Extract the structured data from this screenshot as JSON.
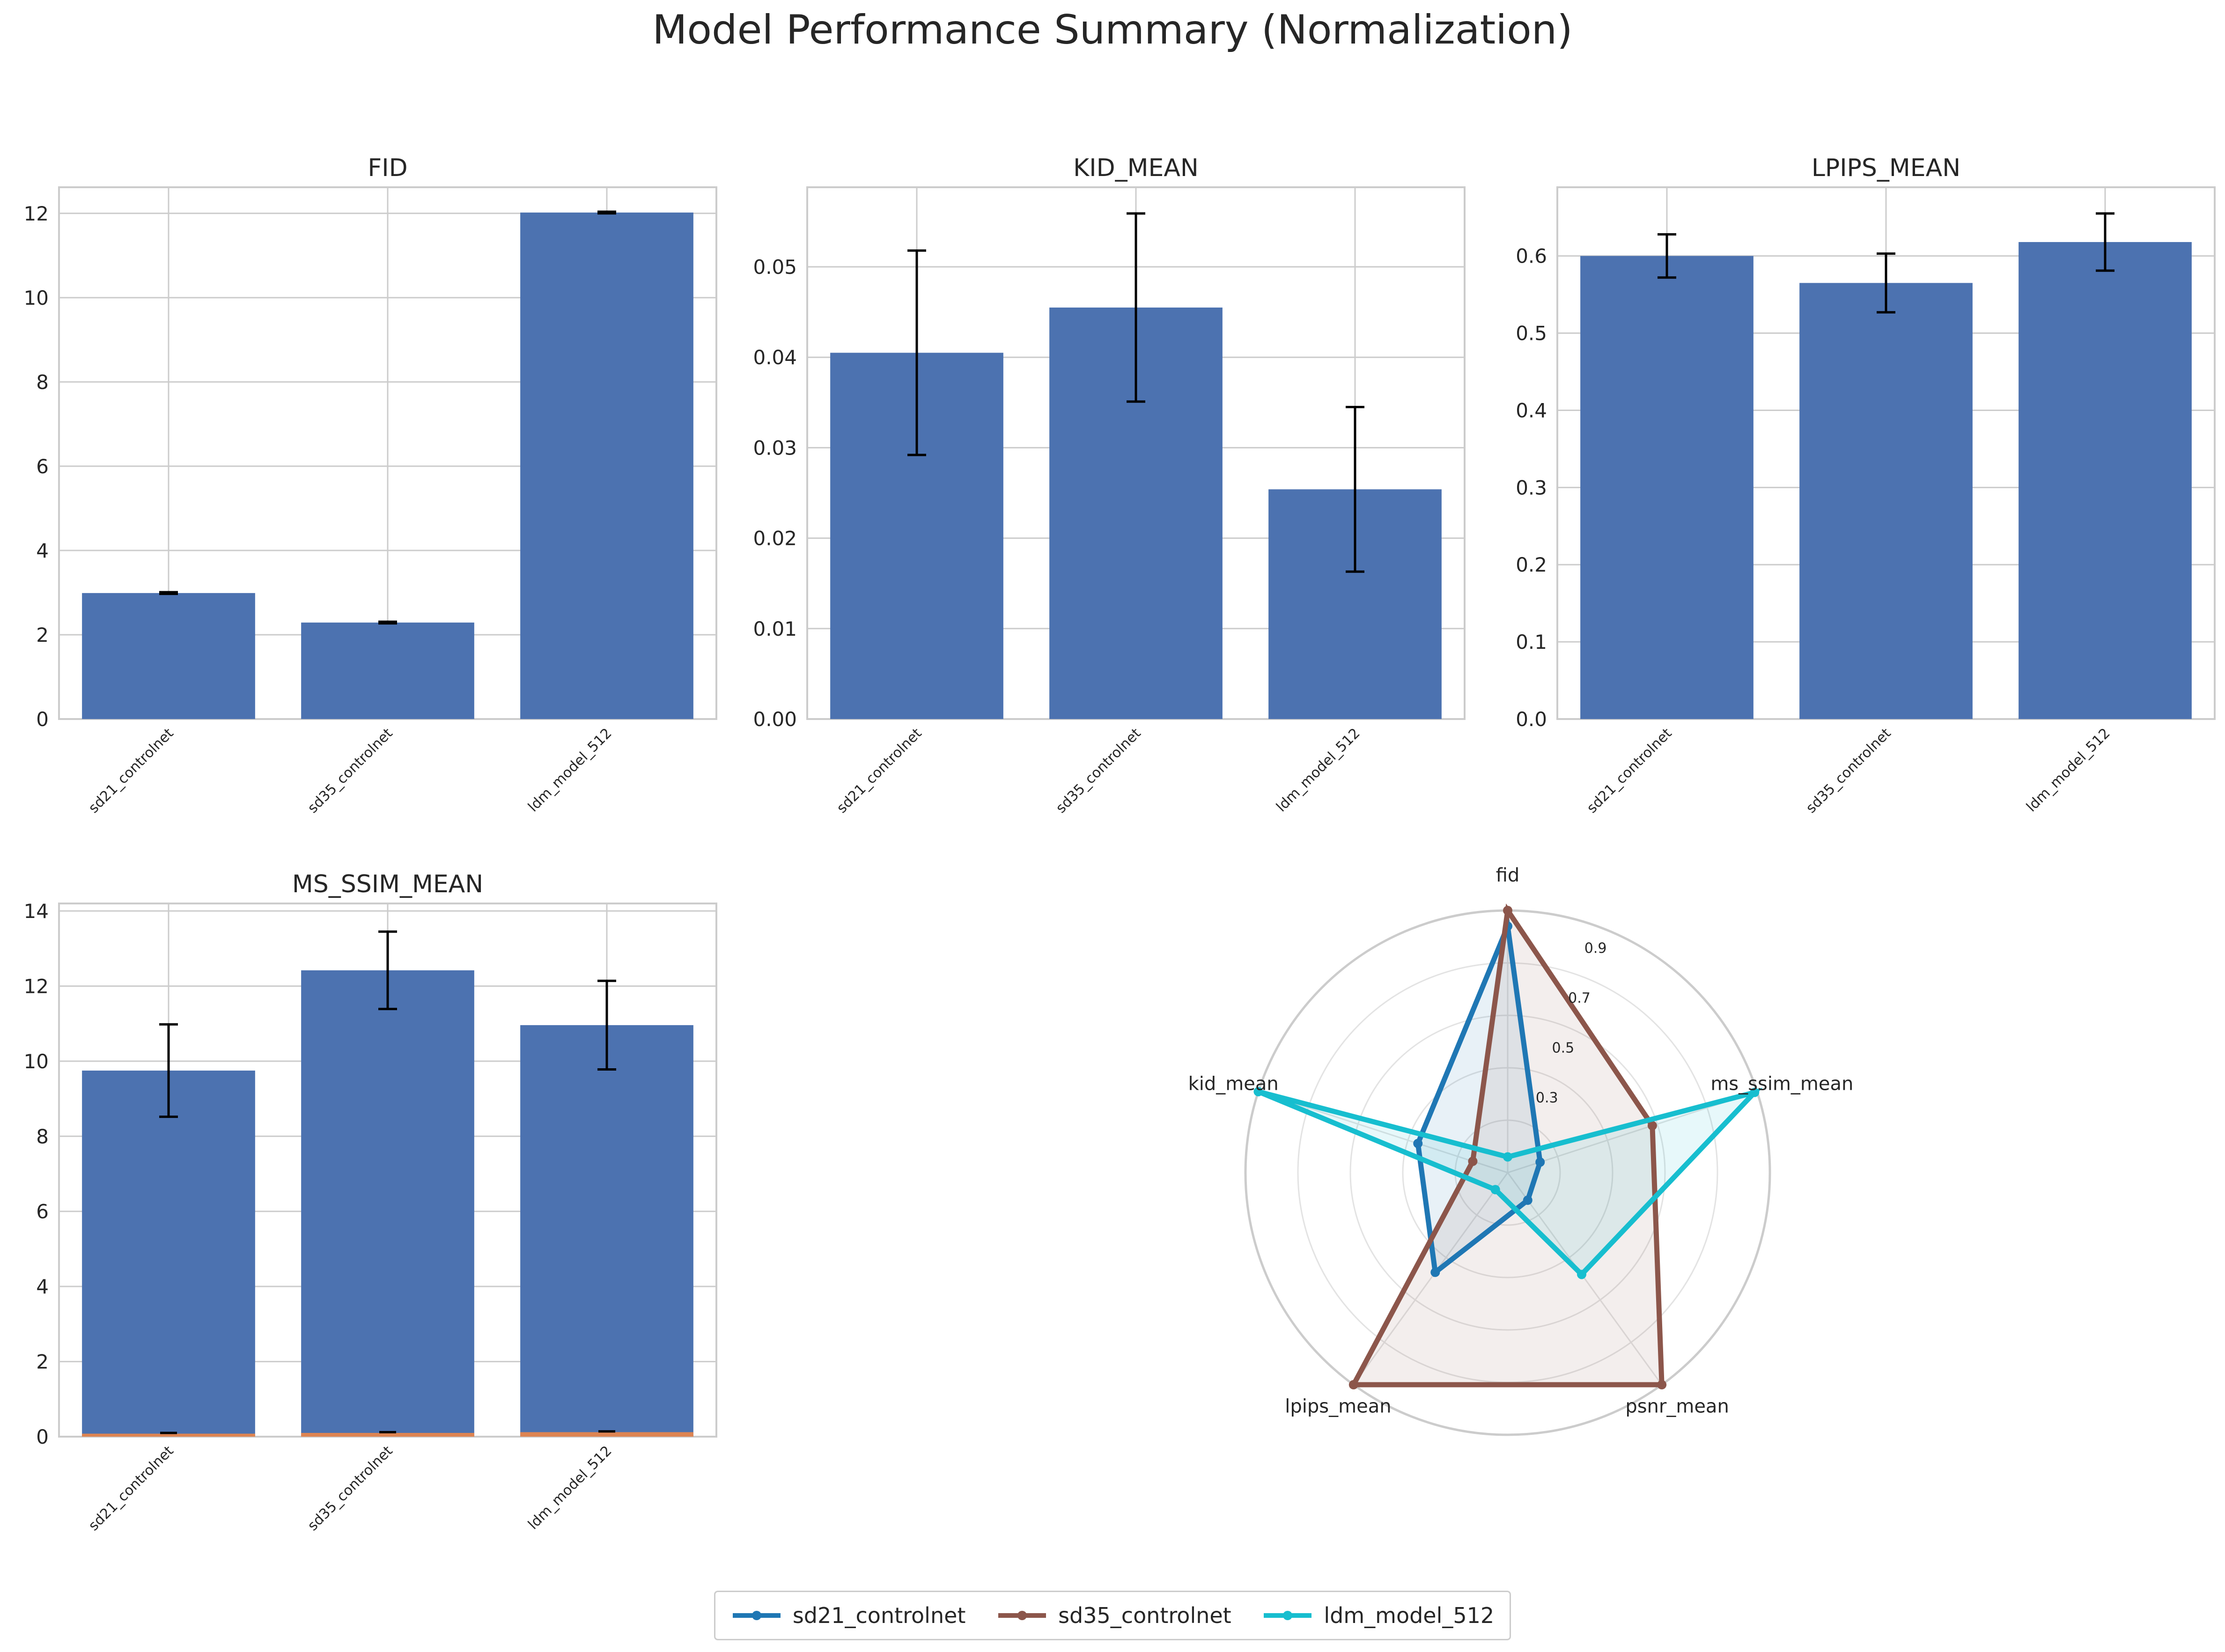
{
  "title": "Model Performance Summary (Normalization)",
  "colors": {
    "bar": "#4c72b0",
    "grid": "#cccccc",
    "error": "#000000",
    "overlay": "#dd8452",
    "sd21_controlnet": "#1f77b4",
    "sd35_controlnet": "#8c564b",
    "ldm_model_512": "#17becf"
  },
  "chart_data": [
    {
      "type": "bar",
      "title": "FID",
      "categories": [
        "sd21_controlnet",
        "sd35_controlnet",
        "ldm_model_512"
      ],
      "values": [
        2.99,
        2.29,
        12.02
      ],
      "errors": [
        0.02,
        0.02,
        0.02
      ],
      "ylim": [
        0,
        12.62
      ],
      "yticks": [
        "0",
        "2",
        "4",
        "6",
        "8",
        "10",
        "12"
      ],
      "ytick_values": [
        0,
        2,
        4,
        6,
        8,
        10,
        12
      ],
      "grid": true
    },
    {
      "type": "bar",
      "title": "KID_MEAN",
      "categories": [
        "sd21_controlnet",
        "sd35_controlnet",
        "ldm_model_512"
      ],
      "values": [
        0.0405,
        0.0455,
        0.0254
      ],
      "errors": [
        0.0113,
        0.0104,
        0.0091
      ],
      "ylim": [
        0,
        0.0588
      ],
      "yticks": [
        "0.00",
        "0.01",
        "0.02",
        "0.03",
        "0.04",
        "0.05"
      ],
      "ytick_values": [
        0,
        0.01,
        0.02,
        0.03,
        0.04,
        0.05
      ],
      "grid": true
    },
    {
      "type": "bar",
      "title": "LPIPS_MEAN",
      "categories": [
        "sd21_controlnet",
        "sd35_controlnet",
        "ldm_model_512"
      ],
      "values": [
        0.6,
        0.565,
        0.618
      ],
      "errors": [
        0.028,
        0.038,
        0.037
      ],
      "ylim": [
        0,
        0.689
      ],
      "yticks": [
        "0.0",
        "0.1",
        "0.2",
        "0.3",
        "0.4",
        "0.5",
        "0.6"
      ],
      "ytick_values": [
        0,
        0.1,
        0.2,
        0.3,
        0.4,
        0.5,
        0.6
      ],
      "grid": true
    },
    {
      "type": "bar",
      "title": "MS_SSIM_MEAN",
      "categories": [
        "sd21_controlnet",
        "sd35_controlnet",
        "ldm_model_512"
      ],
      "values": [
        9.75,
        12.42,
        10.96
      ],
      "errors": [
        1.23,
        1.03,
        1.18
      ],
      "overlay_values": [
        0.08,
        0.1,
        0.12
      ],
      "overlay_errors": [
        0.02,
        0.02,
        0.02
      ],
      "ylim": [
        0,
        14.2
      ],
      "yticks": [
        "0",
        "2",
        "4",
        "6",
        "8",
        "10",
        "12",
        "14"
      ],
      "ytick_values": [
        0,
        2,
        4,
        6,
        8,
        10,
        12,
        14
      ],
      "grid": true
    },
    {
      "type": "radar",
      "axes": [
        "fid",
        "kid_mean",
        "lpips_mean",
        "psnr_mean",
        "ms_ssim_mean"
      ],
      "rticks": [
        "0.3",
        "0.5",
        "0.7",
        "0.9"
      ],
      "rtick_values": [
        0.3,
        0.5,
        0.7,
        0.9
      ],
      "rmax": 1.0,
      "series": [
        {
          "name": "sd21_controlnet",
          "values": [
            0.94,
            0.36,
            0.47,
            0.13,
            0.13
          ]
        },
        {
          "name": "sd35_controlnet",
          "values": [
            1.0,
            0.14,
            1.0,
            1.0,
            0.58
          ]
        },
        {
          "name": "ldm_model_512",
          "values": [
            0.06,
            1.0,
            0.08,
            0.48,
            0.99
          ]
        }
      ],
      "legend": "bottom-center"
    }
  ]
}
